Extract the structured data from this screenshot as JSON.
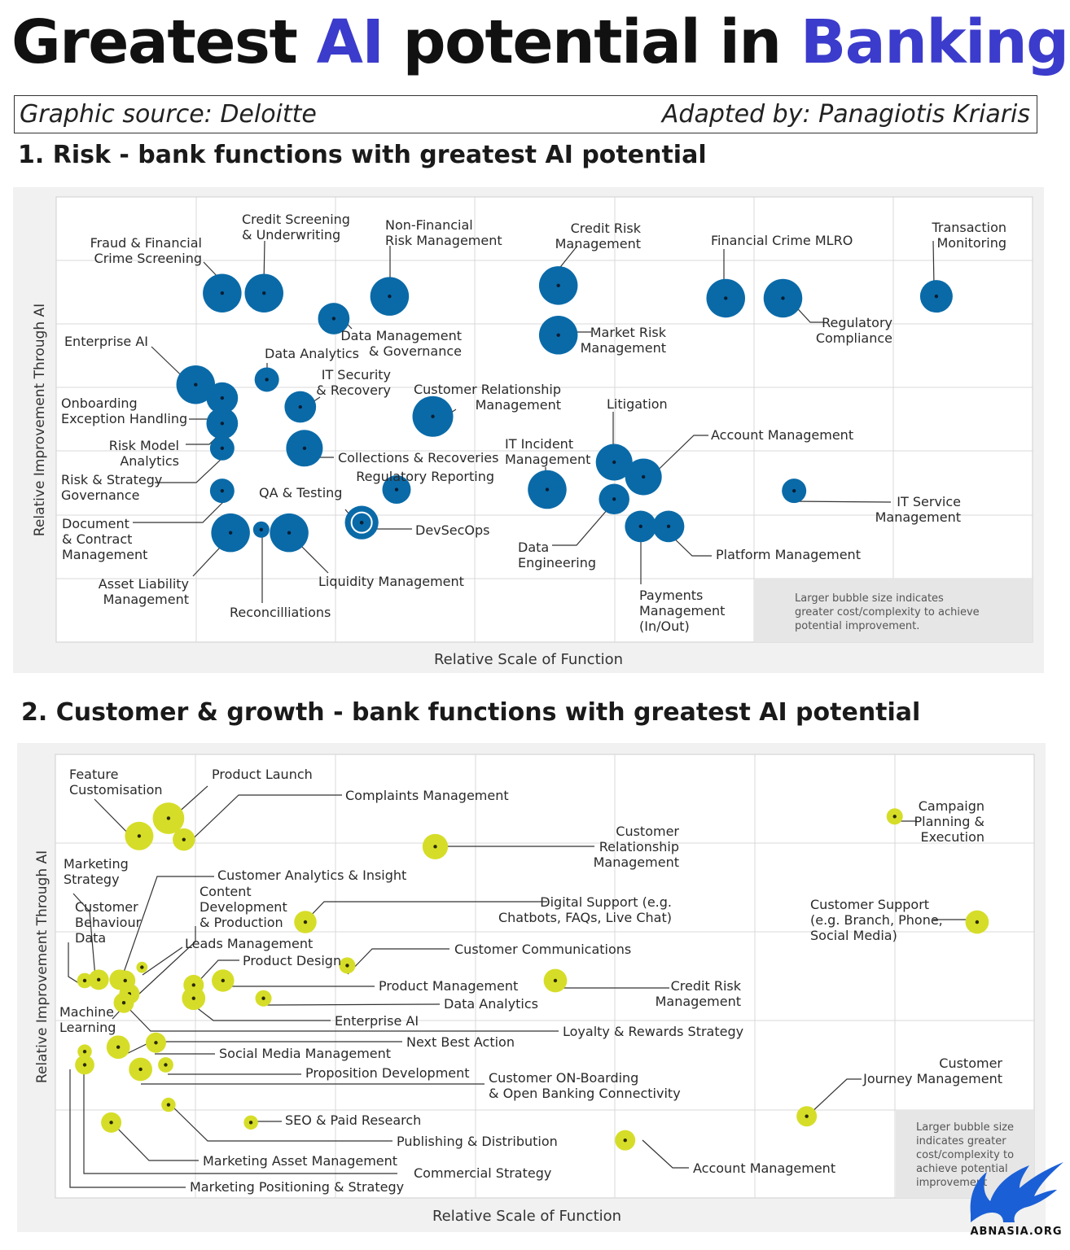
{
  "title": {
    "part1": "Greatest ",
    "accent1": "AI",
    "part2": " potential in ",
    "accent2": "Banking"
  },
  "source": {
    "left": "Graphic source: Deloitte",
    "right": "Adapted by: Panagiotis Kriaris"
  },
  "headings": {
    "risk": "1. Risk - bank functions with greatest AI potential",
    "customer": "2. Customer & growth - bank functions with greatest AI potential"
  },
  "colors": {
    "accent": "#3b3bcc",
    "risk_bubble": "#0a6aa8",
    "customer_bubble": "#d6dd28",
    "panel_bg": "#eeeeee"
  },
  "logo_text": "ABNASIA.ORG",
  "chart_data": [
    {
      "type": "scatter",
      "title": "1. Risk - bank functions with greatest AI potential",
      "xlabel": "Relative Scale of Function",
      "ylabel": "Relative Improvement Through AI",
      "grid": true,
      "note": "Larger bubble size indicates greater cost/complexity to achieve potential improvement.",
      "points": [
        {
          "label": "Fraud & Financial Crime Screening",
          "x": 1.19,
          "y": 5.49,
          "size": 1.9
        },
        {
          "label": "Credit Screening & Underwriting",
          "x": 1.49,
          "y": 5.49,
          "size": 1.9
        },
        {
          "label": "Non-Financial Risk Management",
          "x": 2.39,
          "y": 5.44,
          "size": 1.9
        },
        {
          "label": "Credit Risk Management",
          "x": 3.6,
          "y": 5.61,
          "size": 1.9
        },
        {
          "label": "Financial Crime MLRO",
          "x": 4.8,
          "y": 5.41,
          "size": 1.9
        },
        {
          "label": "Regulatory Compliance",
          "x": 5.21,
          "y": 5.41,
          "size": 1.9
        },
        {
          "label": "Transaction Monitoring",
          "x": 6.31,
          "y": 5.44,
          "size": 1.6
        },
        {
          "label": "Data Management & Governance",
          "x": 1.99,
          "y": 5.09,
          "size": 1.55
        },
        {
          "label": "Market Risk Management",
          "x": 3.6,
          "y": 4.83,
          "size": 1.9
        },
        {
          "label": "Enterprise AI",
          "x": 1.0,
          "y": 4.05,
          "size": 1.9
        },
        {
          "label": "Data Analytics",
          "x": 1.51,
          "y": 4.13,
          "size": 1.2
        },
        {
          "label": "IT Security & Recovery",
          "x": 1.75,
          "y": 3.7,
          "size": 1.55
        },
        {
          "label": "Customer Relationship Management",
          "x": 2.7,
          "y": 3.55,
          "size": 2.0
        },
        {
          "label": "Onboarding Exception Handling",
          "x": 1.19,
          "y": 3.84,
          "size": 1.55
        },
        {
          "label": "Risk Model Analytics",
          "x": 1.19,
          "y": 3.44,
          "size": 1.55
        },
        {
          "label": "Risk & Strategy Governance",
          "x": 1.19,
          "y": 3.05,
          "size": 1.2
        },
        {
          "label": "Collections & Recoveries",
          "x": 1.78,
          "y": 3.05,
          "size": 1.8
        },
        {
          "label": "Regulatory Reporting",
          "x": 2.44,
          "y": 2.4,
          "size": 1.4
        },
        {
          "label": "IT Incident Management",
          "x": 3.52,
          "y": 2.4,
          "size": 1.9
        },
        {
          "label": "Litigation",
          "x": 4.0,
          "y": 2.83,
          "size": 1.8
        },
        {
          "label": "Account Management",
          "x": 4.21,
          "y": 2.6,
          "size": 1.8
        },
        {
          "label": "IT Service Management",
          "x": 5.29,
          "y": 2.38,
          "size": 1.2
        },
        {
          "label": "Document & Contract Management",
          "x": 1.19,
          "y": 2.38,
          "size": 1.2
        },
        {
          "label": "Asset Liability Management",
          "x": 1.25,
          "y": 1.72,
          "size": 1.9
        },
        {
          "label": "Reconcilliations",
          "x": 1.47,
          "y": 1.77,
          "size": 0.8
        },
        {
          "label": "Liquidity Management",
          "x": 1.67,
          "y": 1.72,
          "size": 1.9
        },
        {
          "label": "QA & Testing",
          "x": 2.19,
          "y": 1.88,
          "size": 1.65
        },
        {
          "label": "DevSecOps",
          "x": 2.19,
          "y": 1.88,
          "size": 1.0
        },
        {
          "label": "Data Engineering",
          "x": 4.0,
          "y": 2.25,
          "size": 1.5
        },
        {
          "label": "Payments Management (In/Out)",
          "x": 4.19,
          "y": 1.82,
          "size": 1.55
        },
        {
          "label": "Platform Management",
          "x": 4.39,
          "y": 1.82,
          "size": 1.55
        }
      ]
    },
    {
      "type": "scatter",
      "title": "2. Customer & growth - bank functions with greatest AI potential",
      "xlabel": "Relative Scale of Function",
      "ylabel": "Relative Improvement Through AI",
      "grid": true,
      "note": "Larger bubble size indicates greater cost/complexity to achieve potential improvement",
      "points": [
        {
          "label": "Feature Customisation",
          "x": 0.6,
          "y": 4.08,
          "size": 1.4
        },
        {
          "label": "Product Launch",
          "x": 0.81,
          "y": 4.28,
          "size": 1.55
        },
        {
          "label": "Complaints Management",
          "x": 0.92,
          "y": 4.04,
          "size": 1.1
        },
        {
          "label": "Customer Relationship Management",
          "x": 2.72,
          "y": 3.96,
          "size": 1.25
        },
        {
          "label": "Campaign Planning & Execution",
          "x": 6.01,
          "y": 4.3,
          "size": 0.8
        },
        {
          "label": "Marketing Strategy",
          "x": 0.46,
          "y": 2.46,
          "size": 1.0
        },
        {
          "label": "Customer Analytics & Insight",
          "x": 0.5,
          "y": 2.45,
          "size": 1.0
        },
        {
          "label": "Customer Behaviour Data",
          "x": 0.21,
          "y": 2.45,
          "size": 0.75
        },
        {
          "label": "Content Development & Production",
          "x": 0.31,
          "y": 2.46,
          "size": 1.0
        },
        {
          "label": "Digital Support (e.g. Chatbots, FAQs, Live Chat)",
          "x": 1.79,
          "y": 3.11,
          "size": 1.1
        },
        {
          "label": "Customer Support (e.g. Branch, Phone, Social Media)",
          "x": 6.6,
          "y": 3.11,
          "size": 1.15
        },
        {
          "label": "Leads Management",
          "x": 0.62,
          "y": 2.6,
          "size": 0.55
        },
        {
          "label": "Product Design",
          "x": 0.99,
          "y": 2.4,
          "size": 1.0
        },
        {
          "label": "Customer Communications",
          "x": 2.09,
          "y": 2.62,
          "size": 0.8
        },
        {
          "label": "Product Management",
          "x": 1.2,
          "y": 2.45,
          "size": 1.1
        },
        {
          "label": "Data Analytics",
          "x": 1.49,
          "y": 2.25,
          "size": 0.8
        },
        {
          "label": "Credit Risk Management",
          "x": 3.58,
          "y": 2.45,
          "size": 1.15
        },
        {
          "label": "Enterprise AI",
          "x": 0.99,
          "y": 2.25,
          "size": 1.15
        },
        {
          "label": "Machine Learning",
          "x": 0.53,
          "y": 2.3,
          "size": 1.0
        },
        {
          "label": "Loyalty & Rewards Strategy",
          "x": 0.49,
          "y": 2.2,
          "size": 1.0
        },
        {
          "label": "Next Best Action",
          "x": 0.72,
          "y": 1.75,
          "size": 1.0
        },
        {
          "label": "Social Media Management",
          "x": 0.45,
          "y": 1.7,
          "size": 1.15
        },
        {
          "label": "Proposition Development",
          "x": 0.79,
          "y": 1.5,
          "size": 0.75
        },
        {
          "label": "Customer ON-Boarding & Open Banking Connectivity",
          "x": 0.61,
          "y": 1.45,
          "size": 1.15
        },
        {
          "label": "Customer Journey Management",
          "x": 5.38,
          "y": 0.92,
          "size": 1.0
        },
        {
          "label": "SEO & Paid Research",
          "x": 1.4,
          "y": 0.85,
          "size": 0.7
        },
        {
          "label": "Publishing & Distribution",
          "x": 0.81,
          "y": 1.05,
          "size": 0.7
        },
        {
          "label": "Marketing Asset Management",
          "x": 0.4,
          "y": 0.85,
          "size": 1.0
        },
        {
          "label": "Commercial Strategy",
          "x": 0.21,
          "y": 1.65,
          "size": 0.7
        },
        {
          "label": "Marketing Positioning & Strategy",
          "x": 0.21,
          "y": 1.5,
          "size": 0.95
        },
        {
          "label": "Account Management",
          "x": 4.08,
          "y": 0.65,
          "size": 1.0
        }
      ]
    }
  ]
}
